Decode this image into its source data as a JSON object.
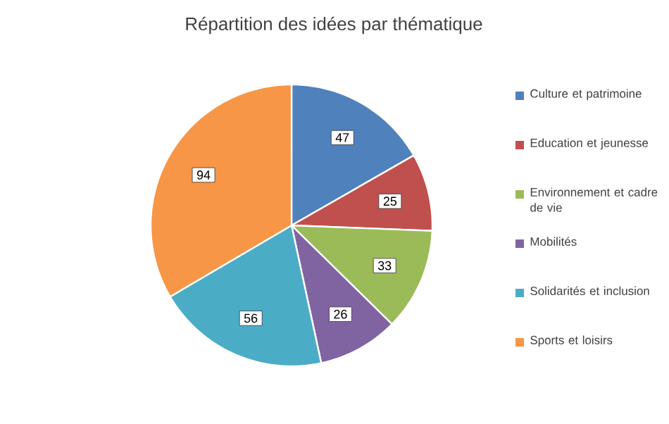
{
  "chart_data": {
    "type": "pie",
    "title": "Répartition des idées par thématique",
    "categories": [
      "Culture et patrimoine",
      "Education et jeunesse",
      "Environnement et cadre de vie",
      "Mobilités",
      "Solidarités et inclusion",
      "Sports et loisirs"
    ],
    "values": [
      47,
      25,
      33,
      26,
      56,
      94
    ],
    "colors": [
      "#4f81bd",
      "#c0504d",
      "#9bbb59",
      "#8064a2",
      "#4bacc6",
      "#f79646"
    ],
    "data_labels": true,
    "legend": "right"
  }
}
